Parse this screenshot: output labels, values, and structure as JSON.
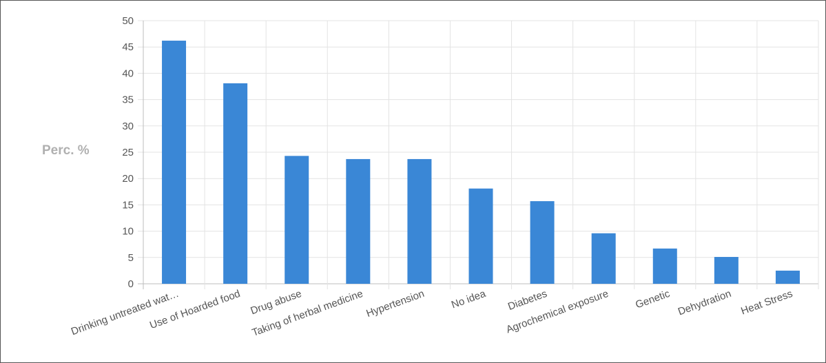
{
  "chart_data": {
    "type": "bar",
    "title": "",
    "xlabel": "",
    "ylabel": "Perc. %",
    "ylim": [
      0,
      50
    ],
    "yticks": [
      0,
      5,
      10,
      15,
      20,
      25,
      30,
      35,
      40,
      45,
      50
    ],
    "grid": true,
    "legend": "none",
    "bar_color": "#3a87d6",
    "categories": [
      "Drinking untreated wat…",
      "Use of Hoarded food",
      "Drug abuse",
      "Taking of herbal medicine",
      "Hypertension",
      "No idea",
      "Diabetes",
      "Agrochemical exposure",
      "Genetic",
      "Dehydration",
      "Heat Stress"
    ],
    "values": [
      46.2,
      38.1,
      24.3,
      23.7,
      23.7,
      18.1,
      15.7,
      9.6,
      6.7,
      5.1,
      2.5
    ]
  }
}
